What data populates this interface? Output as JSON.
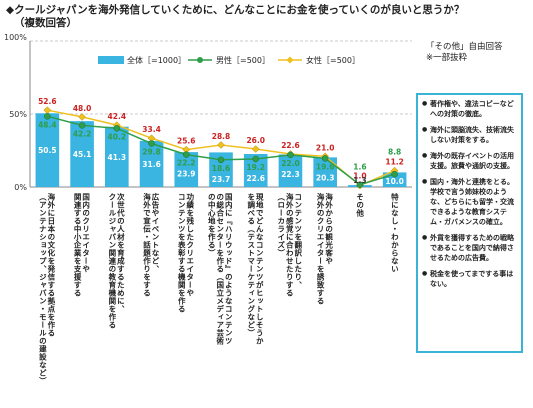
{
  "header": {
    "title_line1": "◆クールジャパンを海外発信していくために、どんなことにお金を使っていくのが良いと思うか？",
    "title_line2": "（複数回答）"
  },
  "note": {
    "line1": "「その他」自由回答",
    "line2": "※一部抜粋"
  },
  "free_answers": [
    "著作権や、違法コピーなどへの対策の徹底。",
    "海外に頭脳流失、技術流失しない対策をする。",
    "海外の既存イベントの活用支援。旅費や通訳の支援。",
    "国内・海外と連携をとる。学校で言う姉妹校のような、どちらにも留学・交流できるような教育システム・ガバメンスの確立。",
    "外貨を獲得するための戦略であることを国内で納得させるための広告費。",
    "税金を使ってまでする事はない。"
  ],
  "chart_data": {
    "type": "bar",
    "ylim": [
      0,
      100
    ],
    "yticks": [
      "0%",
      "50%",
      "100%"
    ],
    "ytick_values": [
      0,
      50,
      100
    ],
    "pct_unit_label": "100%",
    "categories": [
      "海外に日本の文化を発信する拠点を作る\n（アンテナショップ、ジャパン・モールの建設など）",
      "国内のクリエイターや\n関連する中小企業を支援する",
      "次世代の人材を育成するために、\nクールジャパン関連の教育機関を作る",
      "広告やイベントなど、\n海外で宣伝・話題作りをする",
      "功績を残したクリエイターや\nコンテンツを表彰する機関を作る",
      "国内に『ハリウッド』のようなコンテンツ\nの総合センターを作る（国立メディア芸術\nの中心地を作る）",
      "現地でどんなコンテンツがヒットしそうか\nを調べる（テストマーケティングなど）",
      "コンテンツを翻訳したり、\n海外の感覚に合わせたりする\n（ローカライズ）",
      "海外からの観光客や\n海外のクリエイターを誘致する",
      "その他",
      "特になし・わからない"
    ],
    "series": [
      {
        "name": "全体［=1000］",
        "kind": "bar",
        "color": "#3ab4e0",
        "values": [
          50.5,
          45.1,
          41.3,
          31.6,
          23.9,
          23.7,
          22.6,
          22.3,
          20.3,
          1.3,
          10.0
        ]
      },
      {
        "name": "男性［=500］",
        "kind": "line",
        "color": "#2e9e4a",
        "values": [
          48.4,
          42.2,
          40.2,
          29.8,
          22.2,
          18.6,
          19.2,
          22.0,
          19.6,
          1.6,
          8.8
        ]
      },
      {
        "name": "女性［=500］",
        "kind": "line",
        "color": "#f0c020",
        "values": [
          52.6,
          48.0,
          42.4,
          33.4,
          25.6,
          28.8,
          26.0,
          22.6,
          21.0,
          1.0,
          11.2
        ]
      }
    ],
    "label_colors": {
      "total": "#ffffff",
      "male": "#2e9e4a",
      "female": "#cc2222"
    }
  }
}
